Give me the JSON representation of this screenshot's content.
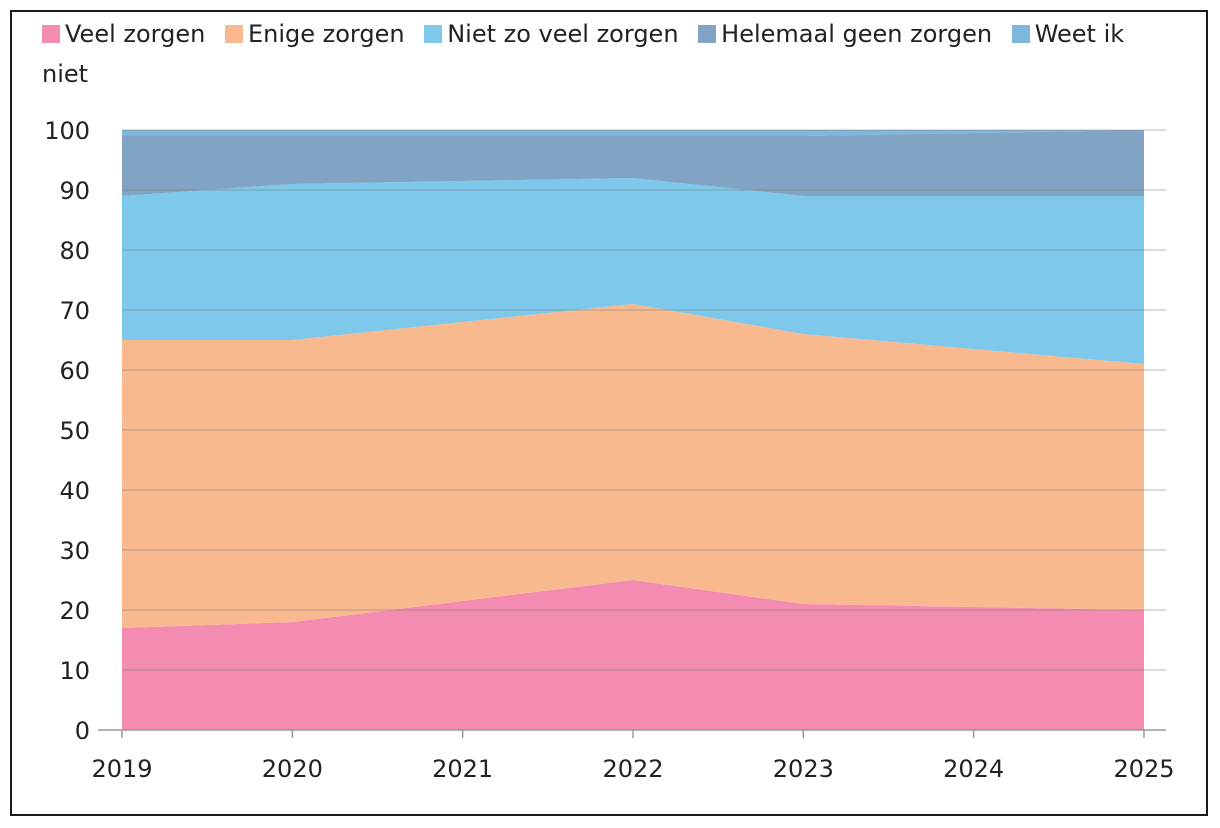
{
  "chart_data": {
    "type": "area",
    "stacked": true,
    "x": [
      "2019",
      "2020",
      "2021",
      "2022",
      "2023",
      "2024",
      "2025"
    ],
    "series": [
      {
        "name": "Veel zorgen",
        "color": "#f48cb1",
        "values": [
          17,
          18,
          21.5,
          25,
          21,
          20.5,
          20
        ]
      },
      {
        "name": "Enige zorgen",
        "color": "#f9b98f",
        "values": [
          48,
          47,
          46.5,
          46,
          45,
          43,
          41
        ]
      },
      {
        "name": "Niet zo veel zorgen",
        "color": "#7ec8eb",
        "values": [
          24,
          26,
          23.5,
          21,
          23,
          25.5,
          28
        ]
      },
      {
        "name": "Helemaal geen zorgen",
        "color": "#81a4c5",
        "values": [
          10,
          8,
          7.5,
          7,
          10,
          10.5,
          11
        ]
      },
      {
        "name": "Weet ik niet",
        "color": "#7db7dc",
        "values": [
          1,
          1,
          1,
          1,
          1,
          0.5,
          0
        ]
      }
    ],
    "yticks": [
      "0",
      "10",
      "20",
      "30",
      "40",
      "50",
      "60",
      "70",
      "80",
      "90",
      "100"
    ],
    "ylim": [
      0,
      100
    ],
    "grid": true,
    "legend": "top"
  }
}
